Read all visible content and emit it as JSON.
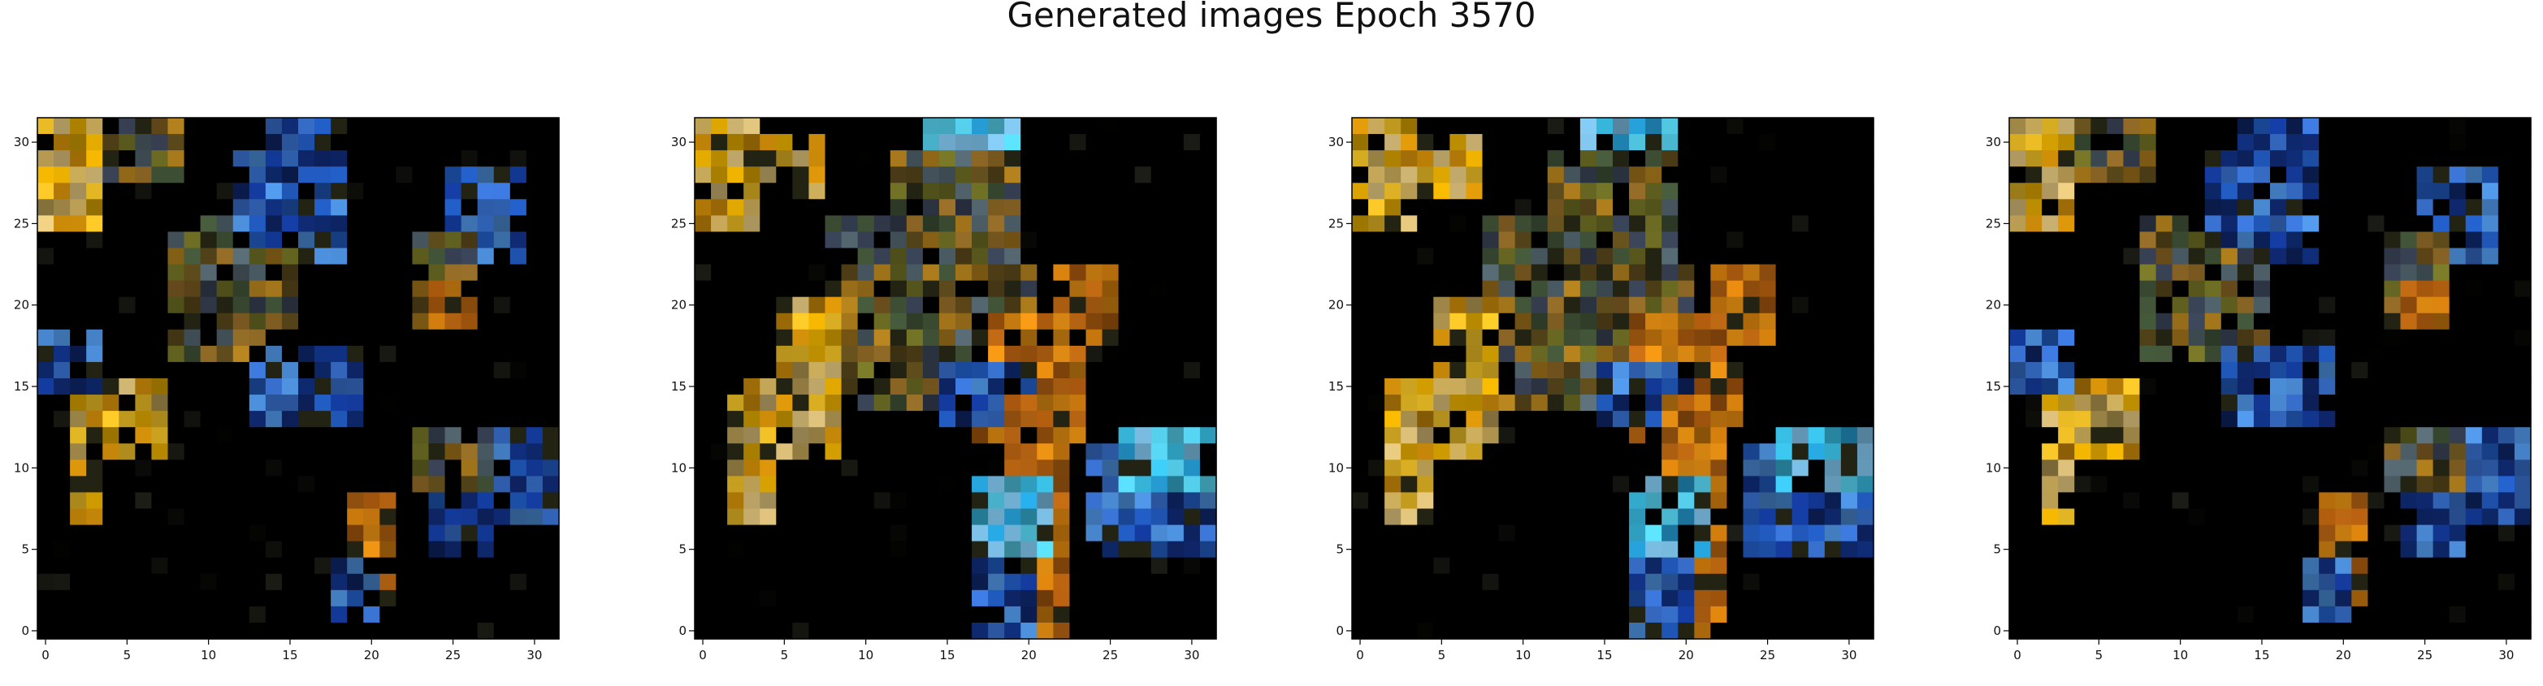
{
  "figure": {
    "title": "Generated images Epoch 3570"
  },
  "chart_data": [
    {
      "type": "heatmap",
      "title": "",
      "xlim": [
        -0.5,
        31.5
      ],
      "ylim": [
        31.5,
        -0.5
      ],
      "xticks": [
        "0",
        "5",
        "10",
        "15",
        "20",
        "25",
        "30"
      ],
      "yticks": [
        "0",
        "5",
        "10",
        "15",
        "20",
        "25",
        "30"
      ],
      "variant": 0
    },
    {
      "type": "heatmap",
      "title": "",
      "xlim": [
        -0.5,
        31.5
      ],
      "ylim": [
        31.5,
        -0.5
      ],
      "xticks": [
        "0",
        "5",
        "10",
        "15",
        "20",
        "25",
        "30"
      ],
      "yticks": [
        "0",
        "5",
        "10",
        "15",
        "20",
        "25",
        "30"
      ],
      "variant": 1
    },
    {
      "type": "heatmap",
      "title": "",
      "xlim": [
        -0.5,
        31.5
      ],
      "ylim": [
        31.5,
        -0.5
      ],
      "xticks": [
        "0",
        "5",
        "10",
        "15",
        "20",
        "25",
        "30"
      ],
      "yticks": [
        "0",
        "5",
        "10",
        "15",
        "20",
        "25",
        "30"
      ],
      "variant": 1
    },
    {
      "type": "heatmap",
      "title": "",
      "xlim": [
        -0.5,
        31.5
      ],
      "ylim": [
        31.5,
        -0.5
      ],
      "xticks": [
        "0",
        "5",
        "10",
        "15",
        "20",
        "25",
        "30"
      ],
      "yticks": [
        "0",
        "5",
        "10",
        "15",
        "20",
        "25",
        "30"
      ],
      "variant": 0
    }
  ],
  "colors": {
    "background": "#000000",
    "gold": "#f0b400",
    "orange": "#e08a10",
    "blue": "#2a6fd8",
    "cyan": "#3fd0f0",
    "white": "#ffffff"
  }
}
